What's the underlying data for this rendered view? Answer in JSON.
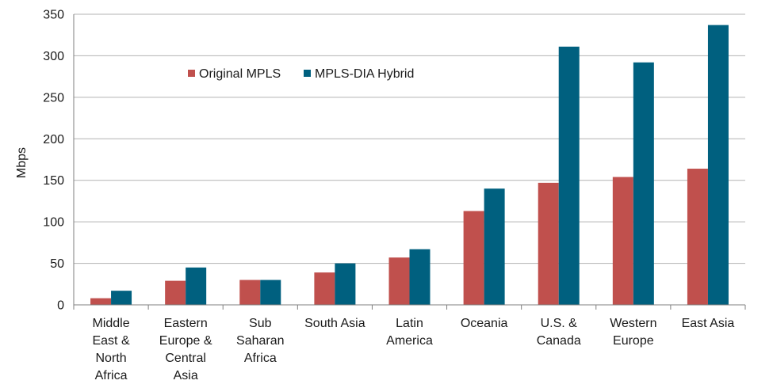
{
  "chart_data": {
    "type": "bar",
    "title": "",
    "xlabel": "",
    "ylabel": "Mbps",
    "ylim": [
      0,
      350
    ],
    "yticks": [
      0,
      50,
      100,
      150,
      200,
      250,
      300,
      350
    ],
    "grid": true,
    "legend_position": "top-left",
    "categories": [
      [
        "Middle",
        "East &",
        "North",
        "Africa"
      ],
      [
        "Eastern",
        "Europe &",
        "Central",
        "Asia"
      ],
      [
        "Sub",
        "Saharan",
        "Africa"
      ],
      [
        "South Asia"
      ],
      [
        "Latin",
        "America"
      ],
      [
        "Oceania"
      ],
      [
        "U.S. &",
        "Canada"
      ],
      [
        "Western",
        "Europe"
      ],
      [
        "East Asia"
      ]
    ],
    "series": [
      {
        "name": "Original MPLS",
        "color": "#c0504d",
        "values": [
          8,
          29,
          30,
          39,
          57,
          113,
          147,
          154,
          164
        ]
      },
      {
        "name": "MPLS-DIA Hybrid",
        "color": "#00607f",
        "values": [
          17,
          45,
          30,
          50,
          67,
          140,
          311,
          292,
          337
        ]
      }
    ]
  }
}
